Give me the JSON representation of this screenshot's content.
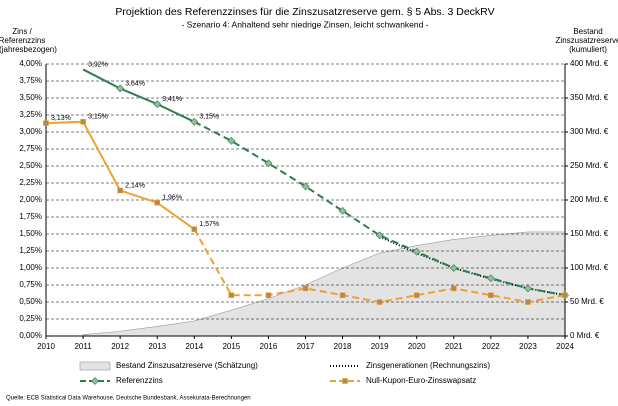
{
  "chart_data": {
    "type": "line",
    "title": "Projektion des Referenzzinses für die Zinszusatzreserve gem. § 5 Abs. 3 DeckRV",
    "subtitle": "- Szenario 4: Anhaltend sehr niedrige Zinsen, leicht schwankend -",
    "y_label": [
      "Zins /",
      "Referenzzins",
      "(jahresbezogen)"
    ],
    "y2_label": [
      "Bestand",
      "Zinszusatzreserve",
      "(kumuliert)"
    ],
    "source": "Quelle: ECB Statistical Data Warehouse, Deutsche Bundesbank, Assekurata-Berechnungen",
    "x": [
      2010,
      2011,
      2012,
      2013,
      2014,
      2015,
      2016,
      2017,
      2018,
      2019,
      2020,
      2021,
      2022,
      2023,
      2024
    ],
    "xlim": [
      2010,
      2024
    ],
    "xticks": [
      2010,
      2011,
      2012,
      2013,
      2014,
      2015,
      2016,
      2017,
      2018,
      2019,
      2020,
      2021,
      2022,
      2023,
      2024
    ],
    "ylim": [
      0,
      4
    ],
    "yticks": [
      {
        "value": 0,
        "label": "0,00%"
      },
      {
        "value": 0.25,
        "label": "0,25%"
      },
      {
        "value": 0.5,
        "label": "0,50%"
      },
      {
        "value": 0.75,
        "label": "0,75%"
      },
      {
        "value": 1,
        "label": "1,00%"
      },
      {
        "value": 1.25,
        "label": "1,25%"
      },
      {
        "value": 1.5,
        "label": "1,50%"
      },
      {
        "value": 1.75,
        "label": "1,75%"
      },
      {
        "value": 2,
        "label": "2,00%"
      },
      {
        "value": 2.25,
        "label": "2,25%"
      },
      {
        "value": 2.5,
        "label": "2,50%"
      },
      {
        "value": 2.75,
        "label": "2,75%"
      },
      {
        "value": 3,
        "label": "3,00%"
      },
      {
        "value": 3.25,
        "label": "3,25%"
      },
      {
        "value": 3.5,
        "label": "3,50%"
      },
      {
        "value": 3.75,
        "label": "3,75%"
      },
      {
        "value": 4,
        "label": "4,00%"
      }
    ],
    "y2lim": [
      0,
      400
    ],
    "y2ticks": [
      {
        "value": 0,
        "label": "0 Mrd. €"
      },
      {
        "value": 50,
        "label": "50 Mrd. €"
      },
      {
        "value": 100,
        "label": "100 Mrd. €"
      },
      {
        "value": 150,
        "label": "150 Mrd. €"
      },
      {
        "value": 200,
        "label": "200 Mrd. €"
      },
      {
        "value": 250,
        "label": "250 Mrd. €"
      },
      {
        "value": 300,
        "label": "300 Mrd. €"
      },
      {
        "value": 350,
        "label": "350 Mrd. €"
      },
      {
        "value": 400,
        "label": "400 Mrd. €"
      }
    ],
    "grid": true,
    "series": [
      {
        "name": "Bestand Zinszusatzreserve (Schätzung)",
        "kind": "area",
        "axis": "y2",
        "color": "#e3e3e3",
        "values": [
          null,
          2,
          7,
          14,
          22,
          38,
          55,
          75,
          100,
          122,
          133,
          142,
          148,
          153,
          153
        ]
      },
      {
        "name": "Zinsgenerationen (Rechnungszins)",
        "kind": "line",
        "line": "dotted",
        "color": "#000000",
        "values": [
          null,
          null,
          null,
          null,
          null,
          null,
          null,
          null,
          null,
          1.46,
          1.22,
          1.0,
          0.84,
          0.7,
          0.6
        ]
      },
      {
        "name": "Referenzzins",
        "kind": "line",
        "color": "#2e7d4f",
        "dashed_from_x": 2014,
        "marker": "diamond",
        "marker_color": "#8fbf9f",
        "values": [
          null,
          3.92,
          3.64,
          3.41,
          3.15,
          2.87,
          2.54,
          2.2,
          1.84,
          1.48,
          1.24,
          1.0,
          0.85,
          0.7,
          0.6
        ],
        "value_labels": [
          null,
          "3,92%",
          "3,64%",
          "3,41%",
          "3,15%",
          null,
          null,
          null,
          null,
          null,
          null,
          null,
          null,
          null,
          null
        ]
      },
      {
        "name": "Null-Kupon-Euro-Zinsswapsatz",
        "kind": "line",
        "color": "#f0a030",
        "dashed_from_x": 2014,
        "marker": "square",
        "marker_color": "#b08a50",
        "values": [
          3.13,
          3.15,
          2.14,
          1.96,
          1.57,
          0.6,
          0.6,
          0.7,
          0.6,
          0.5,
          0.6,
          0.7,
          0.6,
          0.5,
          0.6
        ],
        "value_labels": [
          "3,13%",
          "3,15%",
          "2,14%",
          "1,96%",
          "1,57%",
          null,
          null,
          null,
          null,
          null,
          null,
          null,
          null,
          null,
          null
        ]
      }
    ]
  }
}
